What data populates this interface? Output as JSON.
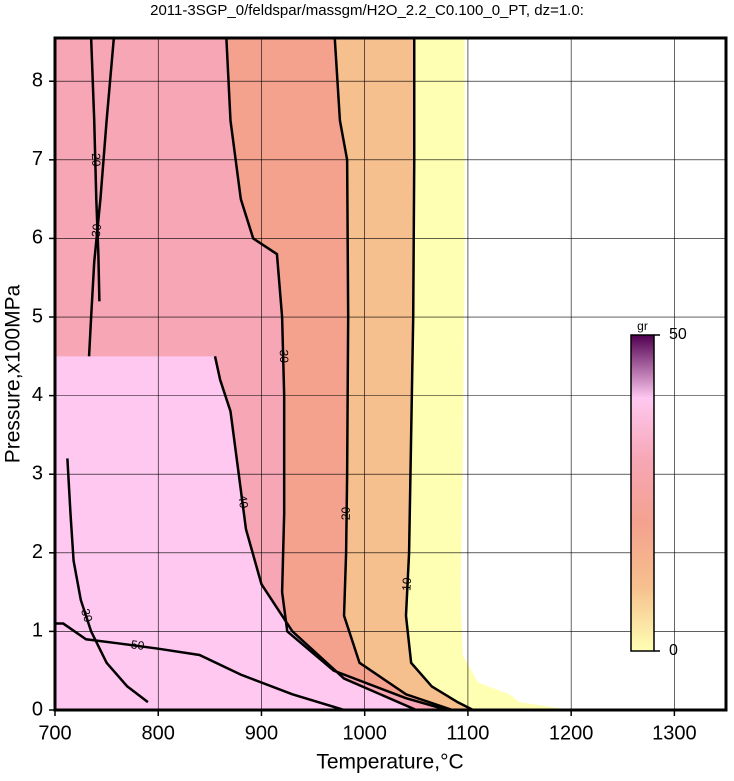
{
  "chart_data": {
    "type": "contour",
    "title": "2011-3SGP_0/feldspar/massgm/H2O_2.2_C0.100_0_PT, dz=1.0:",
    "xlabel": "Temperature,°C",
    "ylabel": "Pressure,x100MPa",
    "xlim": [
      700,
      1350
    ],
    "ylim": [
      0,
      8.55
    ],
    "xticks": [
      700,
      800,
      900,
      1000,
      1100,
      1200,
      1300
    ],
    "yticks": [
      0,
      1,
      2,
      3,
      4,
      5,
      6,
      7,
      8
    ],
    "grid": true,
    "colorbar": {
      "label": "gr",
      "lim": [
        0,
        50
      ],
      "ticks": [
        0,
        50
      ],
      "colors": [
        "#ffffb4",
        "#f6c08e",
        "#f4a28e",
        "#f6a6b4",
        "#ffc8f0",
        "#500050"
      ]
    },
    "data_extent": {
      "x": [
        1097,
        1097,
        1095,
        1093,
        1095,
        1110,
        1140,
        1150,
        1190,
        1190
      ],
      "y": [
        8.55,
        6,
        3,
        1.5,
        0.7,
        0.35,
        0.2,
        0.1,
        0.02,
        0
      ]
    },
    "contours": [
      {
        "level": 10,
        "fill": true,
        "x": [
          1048,
          1048,
          1047,
          1045,
          1043,
          1040,
          1045,
          1065,
          1090,
          1105
        ],
        "y": [
          8.55,
          7,
          5,
          3.5,
          2,
          1.2,
          0.6,
          0.3,
          0.1,
          0
        ]
      },
      {
        "level": 20,
        "fill": true,
        "x": [
          971,
          976,
          983,
          984,
          983,
          982,
          980,
          995,
          1040,
          1085
        ],
        "y": [
          8.55,
          7.5,
          7,
          5,
          3,
          2,
          1.2,
          0.6,
          0.2,
          0
        ]
      },
      {
        "level": 30,
        "fill": true,
        "x": [
          866,
          870,
          880,
          892,
          915,
          920,
          922,
          922,
          920,
          925,
          970,
          1040,
          1080
        ],
        "y": [
          8.55,
          7.5,
          6.5,
          6.0,
          5.8,
          5.0,
          4.0,
          2.5,
          1.5,
          1.0,
          0.5,
          0.15,
          0
        ]
      },
      {
        "level": 40,
        "fill": true,
        "x": [
          855,
          860,
          870,
          878,
          885,
          900,
          930,
          980,
          1050
        ],
        "y": [
          4.5,
          4.2,
          3.8,
          3.0,
          2.3,
          1.6,
          1.0,
          0.4,
          0
        ]
      },
      {
        "level": 50,
        "fill": false,
        "x": [
          700,
          708,
          730,
          760,
          800,
          840,
          880,
          930,
          980
        ],
        "y": [
          1.1,
          1.1,
          0.9,
          0.85,
          0.78,
          0.7,
          0.45,
          0.2,
          0
        ]
      },
      {
        "level": 20,
        "fill": false,
        "x": [
          735,
          738,
          740,
          742,
          743
        ],
        "y": [
          8.55,
          7.5,
          6.5,
          5.8,
          5.2
        ]
      },
      {
        "level": 30,
        "fill": false,
        "x": [
          757,
          750,
          744,
          738,
          735,
          733
        ],
        "y": [
          8.55,
          7.5,
          6.5,
          5.7,
          5.0,
          4.5
        ]
      },
      {
        "level": 30,
        "fill": false,
        "x": [
          712,
          715,
          718,
          725,
          735,
          750,
          770,
          790
        ],
        "y": [
          3.2,
          2.5,
          1.9,
          1.4,
          1.0,
          0.6,
          0.3,
          0.1
        ]
      }
    ]
  }
}
